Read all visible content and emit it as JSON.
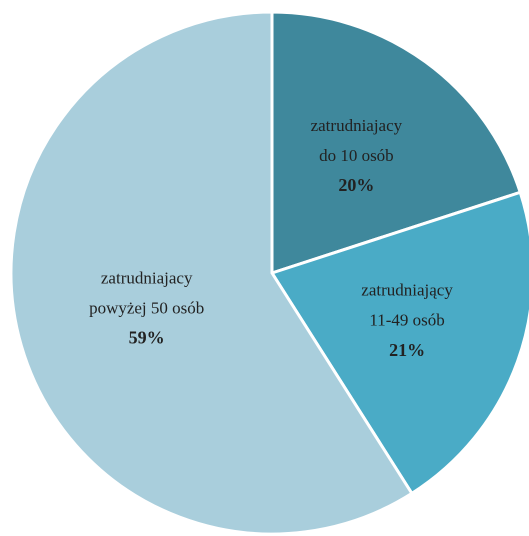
{
  "chart_data": {
    "type": "pie",
    "categories": [
      [
        "zatrudniajacy",
        "do 10 osób"
      ],
      [
        "zatrudniający",
        "11-49 osób"
      ],
      [
        "zatrudniajacy",
        "powyżej  50 osób"
      ]
    ],
    "values": [
      20,
      21,
      59
    ],
    "value_labels": [
      "20%",
      "21%",
      "59%"
    ],
    "colors": [
      "#3f889c",
      "#4aabc6",
      "#a9cedc"
    ]
  }
}
